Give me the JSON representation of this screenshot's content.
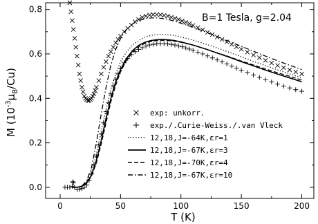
{
  "chart_data": {
    "type": "line",
    "title": "",
    "annotation": "B=1 Tesla, g=2.04",
    "xlabel": "T (K)",
    "ylabel_parts": {
      "main": "M (10",
      "exp": "-3",
      "mu": "μ",
      "sub": "B",
      "tail": "/Cu)"
    },
    "xlim": [
      -12,
      210
    ],
    "ylim": [
      -0.05,
      0.83
    ],
    "x_ticks": [
      0,
      50,
      100,
      150,
      200
    ],
    "y_ticks": [
      0.0,
      0.2,
      0.4,
      0.6,
      0.8
    ],
    "y_tick_labels": [
      "0.0",
      "0.2",
      "0.4",
      "0.6",
      "0.8"
    ],
    "legend_location": "lower-right",
    "series": [
      {
        "name": "exp: unkorr.",
        "marker": "x",
        "points": [
          [
            8,
            0.83
          ],
          [
            9,
            0.79
          ],
          [
            10,
            0.75
          ],
          [
            11,
            0.71
          ],
          [
            12,
            0.67
          ],
          [
            13,
            0.63
          ],
          [
            14,
            0.59
          ],
          [
            15,
            0.55
          ],
          [
            16,
            0.51
          ],
          [
            17,
            0.48
          ],
          [
            18,
            0.45
          ],
          [
            19,
            0.43
          ],
          [
            20,
            0.41
          ],
          [
            21,
            0.4
          ],
          [
            22,
            0.395
          ],
          [
            23,
            0.39
          ],
          [
            24,
            0.39
          ],
          [
            25,
            0.395
          ],
          [
            26,
            0.4
          ],
          [
            27,
            0.41
          ],
          [
            28,
            0.42
          ],
          [
            29,
            0.435
          ],
          [
            30,
            0.45
          ],
          [
            32,
            0.48
          ],
          [
            34,
            0.51
          ],
          [
            36,
            0.54
          ],
          [
            38,
            0.565
          ],
          [
            40,
            0.59
          ],
          [
            42,
            0.61
          ],
          [
            44,
            0.63
          ],
          [
            46,
            0.65
          ],
          [
            48,
            0.665
          ],
          [
            50,
            0.68
          ],
          [
            53,
            0.7
          ],
          [
            56,
            0.715
          ],
          [
            59,
            0.73
          ],
          [
            62,
            0.745
          ],
          [
            65,
            0.755
          ],
          [
            68,
            0.765
          ],
          [
            71,
            0.77
          ],
          [
            74,
            0.775
          ],
          [
            77,
            0.777
          ],
          [
            80,
            0.777
          ],
          [
            83,
            0.776
          ],
          [
            86,
            0.773
          ],
          [
            89,
            0.77
          ],
          [
            92,
            0.765
          ],
          [
            95,
            0.76
          ],
          [
            98,
            0.755
          ],
          [
            101,
            0.748
          ],
          [
            104,
            0.742
          ],
          [
            107,
            0.736
          ],
          [
            110,
            0.728
          ],
          [
            114,
            0.718
          ],
          [
            118,
            0.708
          ],
          [
            122,
            0.697
          ],
          [
            126,
            0.687
          ],
          [
            130,
            0.676
          ],
          [
            134,
            0.665
          ],
          [
            138,
            0.654
          ],
          [
            142,
            0.643
          ],
          [
            146,
            0.632
          ],
          [
            150,
            0.621
          ],
          [
            155,
            0.608
          ],
          [
            160,
            0.595
          ],
          [
            165,
            0.583
          ],
          [
            170,
            0.571
          ],
          [
            175,
            0.559
          ],
          [
            180,
            0.548
          ],
          [
            185,
            0.538
          ],
          [
            190,
            0.528
          ],
          [
            195,
            0.519
          ],
          [
            200,
            0.51
          ]
        ]
      },
      {
        "name": "exp./.Curie-Weiss./.van Vleck",
        "marker": "+",
        "points": [
          [
            4,
            0.0
          ],
          [
            6,
            0.0
          ],
          [
            8,
            0.0
          ],
          [
            10,
            0.005
          ],
          [
            10.5,
            0.025
          ],
          [
            11,
            0.02
          ],
          [
            12,
            0.0
          ],
          [
            14,
            -0.01
          ],
          [
            16,
            -0.01
          ],
          [
            18,
            -0.005
          ],
          [
            20,
            0.0
          ],
          [
            22,
            0.01
          ],
          [
            24,
            0.03
          ],
          [
            26,
            0.06
          ],
          [
            28,
            0.1
          ],
          [
            30,
            0.14
          ],
          [
            32,
            0.19
          ],
          [
            34,
            0.24
          ],
          [
            36,
            0.29
          ],
          [
            38,
            0.34
          ],
          [
            40,
            0.38
          ],
          [
            42,
            0.42
          ],
          [
            44,
            0.455
          ],
          [
            46,
            0.485
          ],
          [
            48,
            0.51
          ],
          [
            50,
            0.535
          ],
          [
            53,
            0.56
          ],
          [
            56,
            0.58
          ],
          [
            59,
            0.597
          ],
          [
            62,
            0.61
          ],
          [
            65,
            0.62
          ],
          [
            68,
            0.628
          ],
          [
            71,
            0.635
          ],
          [
            74,
            0.64
          ],
          [
            77,
            0.643
          ],
          [
            80,
            0.645
          ],
          [
            83,
            0.646
          ],
          [
            86,
            0.646
          ],
          [
            89,
            0.645
          ],
          [
            92,
            0.643
          ],
          [
            95,
            0.64
          ],
          [
            98,
            0.636
          ],
          [
            101,
            0.632
          ],
          [
            104,
            0.627
          ],
          [
            107,
            0.622
          ],
          [
            110,
            0.616
          ],
          [
            114,
            0.608
          ],
          [
            118,
            0.6
          ],
          [
            122,
            0.591
          ],
          [
            126,
            0.582
          ],
          [
            130,
            0.573
          ],
          [
            134,
            0.564
          ],
          [
            138,
            0.555
          ],
          [
            142,
            0.545
          ],
          [
            146,
            0.536
          ],
          [
            150,
            0.527
          ],
          [
            155,
            0.516
          ],
          [
            160,
            0.505
          ],
          [
            165,
            0.494
          ],
          [
            170,
            0.484
          ],
          [
            175,
            0.474
          ],
          [
            180,
            0.464
          ],
          [
            185,
            0.455
          ],
          [
            190,
            0.447
          ],
          [
            195,
            0.439
          ],
          [
            200,
            0.432
          ]
        ]
      },
      {
        "name": "12,18,J=-64K,εr=1",
        "line": "dotted",
        "points": [
          [
            10,
            0.0
          ],
          [
            14,
            0.0
          ],
          [
            18,
            0.005
          ],
          [
            22,
            0.025
          ],
          [
            26,
            0.07
          ],
          [
            30,
            0.15
          ],
          [
            34,
            0.25
          ],
          [
            38,
            0.35
          ],
          [
            42,
            0.44
          ],
          [
            46,
            0.51
          ],
          [
            50,
            0.565
          ],
          [
            55,
            0.61
          ],
          [
            60,
            0.64
          ],
          [
            65,
            0.66
          ],
          [
            70,
            0.675
          ],
          [
            75,
            0.683
          ],
          [
            80,
            0.687
          ],
          [
            85,
            0.688
          ],
          [
            90,
            0.686
          ],
          [
            95,
            0.682
          ],
          [
            100,
            0.676
          ],
          [
            110,
            0.662
          ],
          [
            120,
            0.645
          ],
          [
            130,
            0.627
          ],
          [
            140,
            0.607
          ],
          [
            150,
            0.587
          ],
          [
            160,
            0.567
          ],
          [
            170,
            0.547
          ],
          [
            180,
            0.528
          ],
          [
            190,
            0.51
          ],
          [
            200,
            0.493
          ]
        ]
      },
      {
        "name": "12,18,J=-67K,εr=3",
        "line": "solid",
        "points": [
          [
            10,
            0.0
          ],
          [
            14,
            0.0
          ],
          [
            18,
            0.005
          ],
          [
            22,
            0.02
          ],
          [
            26,
            0.055
          ],
          [
            30,
            0.12
          ],
          [
            34,
            0.21
          ],
          [
            38,
            0.31
          ],
          [
            42,
            0.4
          ],
          [
            46,
            0.475
          ],
          [
            50,
            0.53
          ],
          [
            55,
            0.58
          ],
          [
            60,
            0.615
          ],
          [
            65,
            0.638
          ],
          [
            70,
            0.652
          ],
          [
            75,
            0.66
          ],
          [
            80,
            0.664
          ],
          [
            85,
            0.665
          ],
          [
            90,
            0.663
          ],
          [
            95,
            0.66
          ],
          [
            100,
            0.654
          ],
          [
            110,
            0.64
          ],
          [
            120,
            0.623
          ],
          [
            130,
            0.604
          ],
          [
            140,
            0.585
          ],
          [
            150,
            0.565
          ],
          [
            160,
            0.546
          ],
          [
            170,
            0.527
          ],
          [
            180,
            0.509
          ],
          [
            190,
            0.492
          ],
          [
            200,
            0.475
          ]
        ]
      },
      {
        "name": "12,18,J=-70K,εr=4",
        "line": "dashed",
        "points": [
          [
            10,
            0.0
          ],
          [
            14,
            0.0
          ],
          [
            18,
            0.003
          ],
          [
            22,
            0.018
          ],
          [
            26,
            0.05
          ],
          [
            30,
            0.11
          ],
          [
            34,
            0.195
          ],
          [
            38,
            0.29
          ],
          [
            42,
            0.385
          ],
          [
            46,
            0.46
          ],
          [
            50,
            0.52
          ],
          [
            55,
            0.572
          ],
          [
            60,
            0.608
          ],
          [
            65,
            0.632
          ],
          [
            70,
            0.647
          ],
          [
            75,
            0.656
          ],
          [
            80,
            0.66
          ],
          [
            85,
            0.661
          ],
          [
            90,
            0.66
          ],
          [
            95,
            0.657
          ],
          [
            100,
            0.652
          ],
          [
            110,
            0.639
          ],
          [
            120,
            0.623
          ],
          [
            130,
            0.605
          ],
          [
            140,
            0.587
          ],
          [
            150,
            0.568
          ],
          [
            160,
            0.55
          ],
          [
            170,
            0.532
          ],
          [
            180,
            0.515
          ],
          [
            190,
            0.499
          ],
          [
            200,
            0.483
          ]
        ]
      },
      {
        "name": "12,18,J=-67K,εr=10",
        "line": "dashdot",
        "points": [
          [
            10,
            0.0
          ],
          [
            14,
            0.0
          ],
          [
            18,
            0.005
          ],
          [
            22,
            0.03
          ],
          [
            26,
            0.09
          ],
          [
            30,
            0.2
          ],
          [
            34,
            0.33
          ],
          [
            38,
            0.45
          ],
          [
            42,
            0.55
          ],
          [
            46,
            0.62
          ],
          [
            50,
            0.67
          ],
          [
            55,
            0.71
          ],
          [
            60,
            0.735
          ],
          [
            65,
            0.75
          ],
          [
            70,
            0.758
          ],
          [
            75,
            0.762
          ],
          [
            80,
            0.762
          ],
          [
            85,
            0.759
          ],
          [
            90,
            0.754
          ],
          [
            95,
            0.747
          ],
          [
            100,
            0.738
          ],
          [
            110,
            0.72
          ],
          [
            120,
            0.7
          ],
          [
            130,
            0.678
          ],
          [
            140,
            0.656
          ],
          [
            150,
            0.634
          ],
          [
            160,
            0.612
          ],
          [
            170,
            0.59
          ],
          [
            180,
            0.569
          ],
          [
            190,
            0.549
          ],
          [
            200,
            0.53
          ]
        ]
      }
    ]
  }
}
